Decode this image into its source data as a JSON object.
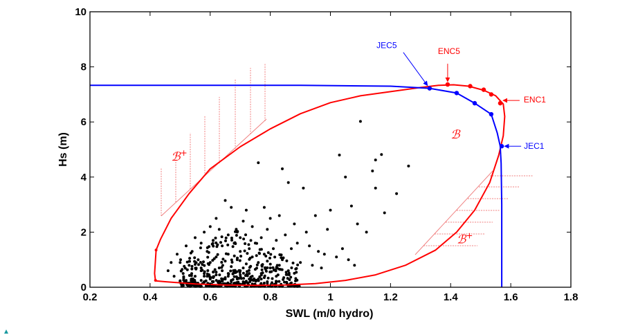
{
  "chart_data": {
    "type": "scatter",
    "title": "",
    "xlabel": "SWL (m/0 hydro)",
    "ylabel": "Hs (m)",
    "xlim": [
      0.2,
      1.8
    ],
    "ylim": [
      0,
      10
    ],
    "x_ticks": [
      "0.2",
      "0.4",
      "0.6",
      "0.8",
      "1",
      "1.2",
      "1.4",
      "1.6",
      "1.8"
    ],
    "y_ticks": [
      "0",
      "2",
      "4",
      "6",
      "8",
      "10"
    ],
    "grid": false,
    "colors": {
      "jec": "#0000ff",
      "enc": "#ff0000",
      "obs": "#000000",
      "hatch": "#f08080"
    },
    "series": [
      {
        "id": "jec",
        "type": "line",
        "color": "#0000ff",
        "x": [
          0.2,
          0.9,
          1.2,
          1.33,
          1.42,
          1.48,
          1.535,
          1.555,
          1.565,
          1.568,
          1.57,
          1.57,
          1.57
        ],
        "y": [
          7.33,
          7.33,
          7.3,
          7.22,
          7.05,
          6.68,
          6.28,
          5.6,
          5.12,
          4.5,
          3.0,
          1.0,
          0.0
        ]
      },
      {
        "id": "jec-points",
        "type": "scatter",
        "color": "#0000ff",
        "x": [
          1.33,
          1.42,
          1.48,
          1.535,
          1.57
        ],
        "y": [
          7.22,
          7.05,
          6.68,
          6.28,
          5.12
        ]
      },
      {
        "id": "contour-b",
        "type": "line",
        "color": "#ff0000",
        "closed": true,
        "x": [
          0.42,
          0.435,
          0.47,
          0.53,
          0.6,
          0.7,
          0.8,
          0.9,
          1.0,
          1.1,
          1.2,
          1.3,
          1.36,
          1.41,
          1.46,
          1.51,
          1.55,
          1.575,
          1.58,
          1.575,
          1.56,
          1.53,
          1.48,
          1.42,
          1.35,
          1.25,
          1.15,
          1.05,
          0.95,
          0.85,
          0.75,
          0.65,
          0.55,
          0.45,
          0.418,
          0.415,
          0.418,
          0.42
        ],
        "y": [
          1.35,
          1.75,
          2.5,
          3.4,
          4.3,
          5.1,
          5.75,
          6.3,
          6.7,
          6.95,
          7.1,
          7.25,
          7.33,
          7.35,
          7.3,
          7.15,
          6.95,
          6.65,
          6.2,
          5.5,
          4.8,
          3.8,
          2.8,
          2.0,
          1.35,
          0.8,
          0.45,
          0.25,
          0.13,
          0.08,
          0.07,
          0.08,
          0.12,
          0.2,
          0.23,
          0.5,
          1.0,
          1.35
        ]
      },
      {
        "id": "enc-points",
        "type": "scatter",
        "color": "#ff0000",
        "x": [
          1.39,
          1.465,
          1.51,
          1.535,
          1.565,
          0.42,
          0.418
        ],
        "y": [
          7.36,
          7.3,
          7.17,
          7.0,
          6.68,
          1.35,
          0.25
        ]
      },
      {
        "id": "observations",
        "type": "scatter",
        "color": "#000000",
        "x": [
          1.1,
          0.76,
          0.84,
          1.03,
          1.15,
          1.17,
          1.14,
          1.26,
          1.05,
          1.15,
          0.86,
          0.91,
          1.22,
          0.65,
          0.67,
          0.72,
          0.78,
          0.8,
          1.0,
          1.07,
          1.09,
          0.95,
          0.99,
          1.12,
          1.18,
          0.88,
          0.92,
          0.83,
          0.62,
          0.58,
          0.55,
          0.52,
          0.49,
          0.47,
          0.46,
          0.5,
          0.54,
          0.57,
          0.6,
          0.63,
          0.66,
          0.69,
          0.71,
          0.74,
          0.77,
          0.79,
          0.82,
          0.85,
          0.87,
          0.89,
          0.93,
          0.96,
          0.98,
          1.02,
          1.04,
          1.06,
          1.08,
          0.61,
          0.64,
          0.68,
          0.7,
          0.73,
          0.75,
          0.59,
          0.56,
          0.53,
          0.51,
          0.48,
          0.62,
          0.66,
          0.7,
          0.74,
          0.78,
          0.81,
          0.84,
          0.9,
          0.94,
          0.97,
          0.6,
          0.65,
          0.69,
          0.72,
          0.76,
          0.79,
          0.83,
          0.86,
          0.57,
          0.63,
          0.67,
          0.71,
          0.75,
          0.8,
          0.58,
          0.61,
          0.64,
          0.68,
          0.73,
          0.77,
          0.55,
          0.59,
          0.62,
          0.66,
          0.7,
          0.74,
          0.78,
          0.82,
          0.54,
          0.6,
          0.65,
          0.69,
          0.73,
          0.76,
          0.52,
          0.57,
          0.61,
          0.64,
          0.67,
          0.71,
          0.75,
          0.79,
          0.53,
          0.58,
          0.63,
          0.68,
          0.72,
          0.56,
          0.6,
          0.64,
          0.69,
          0.74,
          0.78,
          0.57,
          0.62,
          0.66,
          0.7,
          0.61,
          0.65,
          0.58,
          0.63,
          0.67,
          0.72,
          0.77
        ],
        "y": [
          6.02,
          4.52,
          4.3,
          4.8,
          4.62,
          4.82,
          4.22,
          4.4,
          4.0,
          3.6,
          3.8,
          3.6,
          3.4,
          3.15,
          2.9,
          2.8,
          2.9,
          2.5,
          2.8,
          2.95,
          2.3,
          2.6,
          2.1,
          2.0,
          2.7,
          2.3,
          2.0,
          2.6,
          2.5,
          2.0,
          1.8,
          1.5,
          1.2,
          0.9,
          0.6,
          0.9,
          1.3,
          1.6,
          2.2,
          2.1,
          1.9,
          2.0,
          2.4,
          2.2,
          1.8,
          2.1,
          1.7,
          1.9,
          1.4,
          1.6,
          1.5,
          1.3,
          1.2,
          1.1,
          1.4,
          1.0,
          0.8,
          1.7,
          1.5,
          1.6,
          1.8,
          1.4,
          1.6,
          1.3,
          1.0,
          0.8,
          0.5,
          0.4,
          1.1,
          1.2,
          1.3,
          1.1,
          1.2,
          1.4,
          1.0,
          0.9,
          0.8,
          0.7,
          0.9,
          0.95,
          1.0,
          0.85,
          0.9,
          0.95,
          0.8,
          0.6,
          0.7,
          0.7,
          0.75,
          0.7,
          0.65,
          0.7,
          0.5,
          0.55,
          0.6,
          0.55,
          0.5,
          0.5,
          0.4,
          0.4,
          0.45,
          0.4,
          0.45,
          0.4,
          0.35,
          0.4,
          0.3,
          0.3,
          0.35,
          0.3,
          0.3,
          0.3,
          0.25,
          0.25,
          0.2,
          0.25,
          0.2,
          0.2,
          0.25,
          0.2,
          0.15,
          0.18,
          0.15,
          0.15,
          0.18,
          0.12,
          0.12,
          0.1,
          0.12,
          0.12,
          0.15,
          0.6,
          0.55,
          0.5,
          0.6,
          0.35,
          0.3,
          0.2,
          0.22,
          0.25,
          0.22,
          0.3
        ]
      }
    ],
    "annotations": [
      {
        "id": "jec5",
        "text": "JEC5",
        "color": "#0000ff",
        "x": 1.33,
        "y": 7.22
      },
      {
        "id": "enc5",
        "text": "ENC5",
        "color": "#ff0000",
        "x": 1.39,
        "y": 7.36
      },
      {
        "id": "enc1",
        "text": "ENC1",
        "color": "#ff0000",
        "x": 1.565,
        "y": 6.68
      },
      {
        "id": "jec1",
        "text": "JEC1",
        "color": "#0000ff",
        "x": 1.57,
        "y": 5.12
      }
    ],
    "regions": [
      {
        "id": "region-b",
        "text": "ℬ",
        "x": 1.4,
        "y": 5.4
      },
      {
        "id": "region-b-plus-upper",
        "text": "ℬ",
        "sup": "+",
        "x": 0.47,
        "y": 4.6
      },
      {
        "id": "region-b-plus-lower",
        "text": "ℬ",
        "sup": "+",
        "x": 1.42,
        "y": 1.6
      }
    ]
  }
}
